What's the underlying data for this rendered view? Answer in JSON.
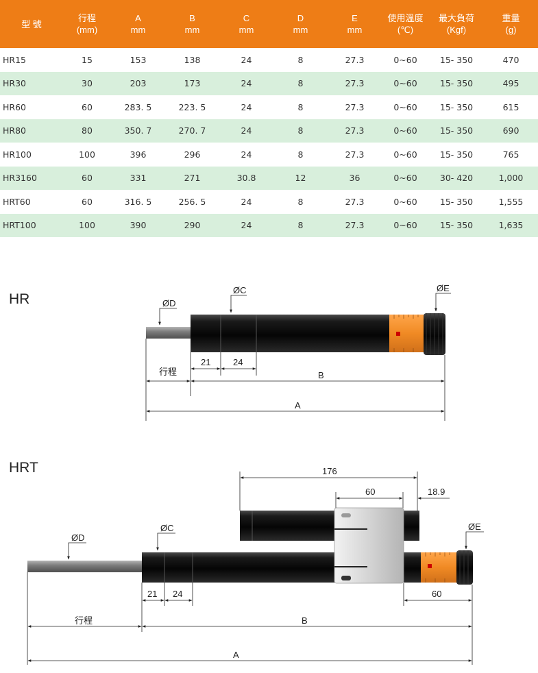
{
  "table": {
    "headers": [
      {
        "line1": "型 號",
        "line2": ""
      },
      {
        "line1": "行程",
        "line2": "(mm)"
      },
      {
        "line1": "A",
        "line2": "mm"
      },
      {
        "line1": "B",
        "line2": "mm"
      },
      {
        "line1": "C",
        "line2": "mm"
      },
      {
        "line1": "D",
        "line2": "mm"
      },
      {
        "line1": "E",
        "line2": "mm"
      },
      {
        "line1": "使用溫度",
        "line2": "(℃)"
      },
      {
        "line1": "最大負荷",
        "line2": "(Kgf)"
      },
      {
        "line1": "重量",
        "line2": "(g)"
      }
    ],
    "rows": [
      [
        "HR15",
        "15",
        "153",
        "138",
        "24",
        "8",
        "27.3",
        "0~60",
        "15- 350",
        "470"
      ],
      [
        "HR30",
        "30",
        "203",
        "173",
        "24",
        "8",
        "27.3",
        "0~60",
        "15- 350",
        "495"
      ],
      [
        "HR60",
        "60",
        "283. 5",
        "223. 5",
        "24",
        "8",
        "27.3",
        "0~60",
        "15- 350",
        "615"
      ],
      [
        "HR80",
        "80",
        "350. 7",
        "270. 7",
        "24",
        "8",
        "27.3",
        "0~60",
        "15- 350",
        "690"
      ],
      [
        "HR100",
        "100",
        "396",
        "296",
        "24",
        "8",
        "27.3",
        "0~60",
        "15- 350",
        "765"
      ],
      [
        "HR3160",
        "60",
        "331",
        "271",
        "30.8",
        "12",
        "36",
        "0~60",
        "30- 420",
        "1,000"
      ],
      [
        "HRT60",
        "60",
        "316. 5",
        "256. 5",
        "24",
        "8",
        "27.3",
        "0~60",
        "15- 350",
        "1,555"
      ],
      [
        "HRT100",
        "100",
        "390",
        "290",
        "24",
        "8",
        "27.3",
        "0~60",
        "15- 350",
        "1,635"
      ]
    ]
  },
  "hr": {
    "title": "HR",
    "labels": {
      "d": "ØD",
      "c": "ØC",
      "e": "ØE",
      "dim21": "21",
      "dim24": "24",
      "stroke": "行程",
      "b": "B",
      "a": "A"
    }
  },
  "hrt": {
    "title": "HRT",
    "labels": {
      "d": "ØD",
      "c": "ØC",
      "e": "ØE",
      "dim176": "176",
      "dim60top": "60",
      "dim189": "18.9",
      "dim60bottom": "60",
      "dim21": "21",
      "dim24": "24",
      "stroke": "行程",
      "b": "B",
      "a": "A"
    }
  },
  "colors": {
    "header": "#ee7d16",
    "alt_row": "#d8efdc",
    "band": "#f08a24",
    "body": "#111111",
    "rod": "#8a8a8a"
  }
}
